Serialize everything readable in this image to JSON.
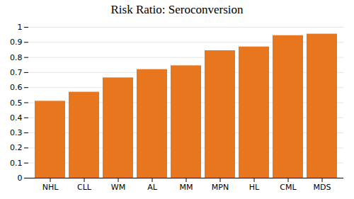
{
  "chart_data": {
    "type": "bar",
    "title": "Risk Ratio: Seroconversion",
    "categories": [
      "NHL",
      "CLL",
      "WM",
      "AL",
      "MM",
      "MPN",
      "HL",
      "CML",
      "MDS"
    ],
    "values": [
      0.51,
      0.57,
      0.665,
      0.72,
      0.745,
      0.845,
      0.87,
      0.945,
      0.955
    ],
    "color": "#E8761E",
    "ylim": [
      0,
      1.0
    ],
    "yticks": [
      0,
      0.1,
      0.2,
      0.3,
      0.4,
      0.5,
      0.6,
      0.7,
      0.8,
      0.9,
      1
    ],
    "grid": true
  }
}
